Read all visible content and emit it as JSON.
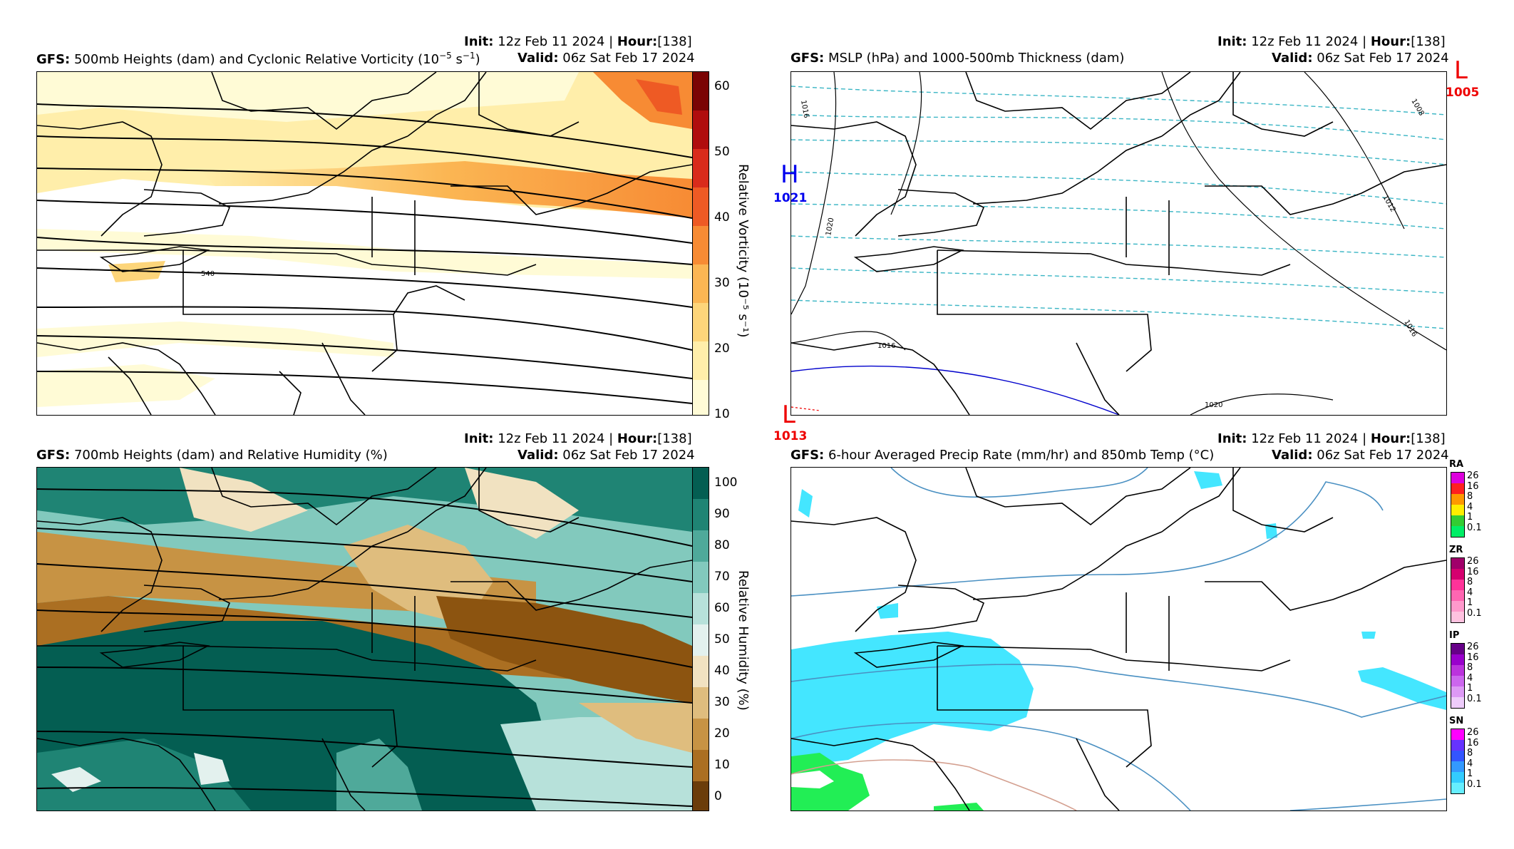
{
  "panels": [
    {
      "id": "vort",
      "init_label": "Init",
      "init_value": "12z Feb 11 2024",
      "hour_label": "Hour",
      "hour_value": "[138]",
      "model": "GFS",
      "title": "500mb Heights (dam) and Cyclonic Relative Vorticity (10",
      "title_sup": "−5",
      "title_tail": " s",
      "title_sup2": "−1",
      "title_end": ")",
      "valid_label": "Valid",
      "valid_value": "06z Sat Feb 17 2024",
      "colorbar_label": "Relative Vorticity (10⁻⁵ s⁻¹)",
      "colorbar_ticks": [
        "10",
        "20",
        "30",
        "40",
        "50",
        "60"
      ],
      "contour_label": "540"
    },
    {
      "id": "mslp",
      "init_label": "Init",
      "init_value": "12z Feb 11 2024",
      "hour_label": "Hour",
      "hour_value": "[138]",
      "model": "GFS",
      "title": "MSLP (hPa) and 1000-500mb Thickness (dam)",
      "valid_label": "Valid",
      "valid_value": "06z Sat Feb 17 2024",
      "isobar_labels": [
        "1016",
        "1016",
        "1020",
        "1020",
        "1012",
        "1008",
        "1016"
      ],
      "centers": [
        {
          "type": "H",
          "value": "1021",
          "color": "#0000ee"
        },
        {
          "type": "L",
          "value": "1005",
          "color": "#ee0000"
        },
        {
          "type": "L",
          "value": "1013",
          "color": "#ee0000"
        }
      ]
    },
    {
      "id": "rh",
      "init_label": "Init",
      "init_value": "12z Feb 11 2024",
      "hour_label": "Hour",
      "hour_value": "[138]",
      "model": "GFS",
      "title": "700mb Heights (dam) and Relative Humidity (%)",
      "valid_label": "Valid",
      "valid_value": "06z Sat Feb 17 2024",
      "colorbar_label": "Relative Humidity (%)",
      "colorbar_ticks": [
        "0",
        "10",
        "20",
        "30",
        "40",
        "50",
        "60",
        "70",
        "80",
        "90",
        "100"
      ]
    },
    {
      "id": "precip",
      "init_label": "Init",
      "init_value": "12z Feb 11 2024",
      "hour_label": "Hour",
      "hour_value": "[138]",
      "model": "GFS",
      "title": "6-hour Averaged Precip Rate (mm/hr) and 850mb Temp (°C)",
      "valid_label": "Valid",
      "valid_value": "06z Sat Feb 17 2024",
      "precip_types": [
        {
          "code": "RA",
          "ticks": [
            "26",
            "16",
            "8",
            "4",
            "1",
            "0.1"
          ],
          "colors": [
            "#dd00dd",
            "#ff2020",
            "#ff9900",
            "#ffee00",
            "#33cc33",
            "#00ee66"
          ]
        },
        {
          "code": "ZR",
          "ticks": [
            "26",
            "16",
            "8",
            "4",
            "1",
            "0.1"
          ],
          "colors": [
            "#a0006a",
            "#d5006f",
            "#ff3399",
            "#ff66b2",
            "#ff99cc",
            "#ffc2e0"
          ]
        },
        {
          "code": "IP",
          "ticks": [
            "26",
            "16",
            "8",
            "4",
            "1",
            "0.1"
          ],
          "colors": [
            "#660088",
            "#9900cc",
            "#bb33dd",
            "#cc66ee",
            "#dd99f5",
            "#eeccfb"
          ]
        },
        {
          "code": "SN",
          "ticks": [
            "26",
            "16",
            "8",
            "4",
            "1",
            "0.1"
          ],
          "colors": [
            "#ff00ff",
            "#6633ff",
            "#3355ff",
            "#3399ff",
            "#33ccff",
            "#66eeff"
          ]
        }
      ]
    }
  ],
  "colors": {
    "vort_scale": [
      "#fffbd6",
      "#ffeeaa",
      "#fdd57a",
      "#fbb653",
      "#f78b34",
      "#ee5a24",
      "#d92b1b",
      "#b00d0d",
      "#7a0404"
    ],
    "rh_scale": [
      "#6b3d0a",
      "#8c5410",
      "#ab6f22",
      "#c79344",
      "#dfbd7e",
      "#f1e2c1",
      "#e3f1ee",
      "#b7e1da",
      "#82c9bd",
      "#4fa99a",
      "#1f8474",
      "#045e52"
    ],
    "precip_snow": "#44e6ff",
    "precip_rain": "#22ee55",
    "temp_line": "#4a90c2",
    "temp_warm": "#d4a090",
    "thickness": "#3ab5c4"
  }
}
